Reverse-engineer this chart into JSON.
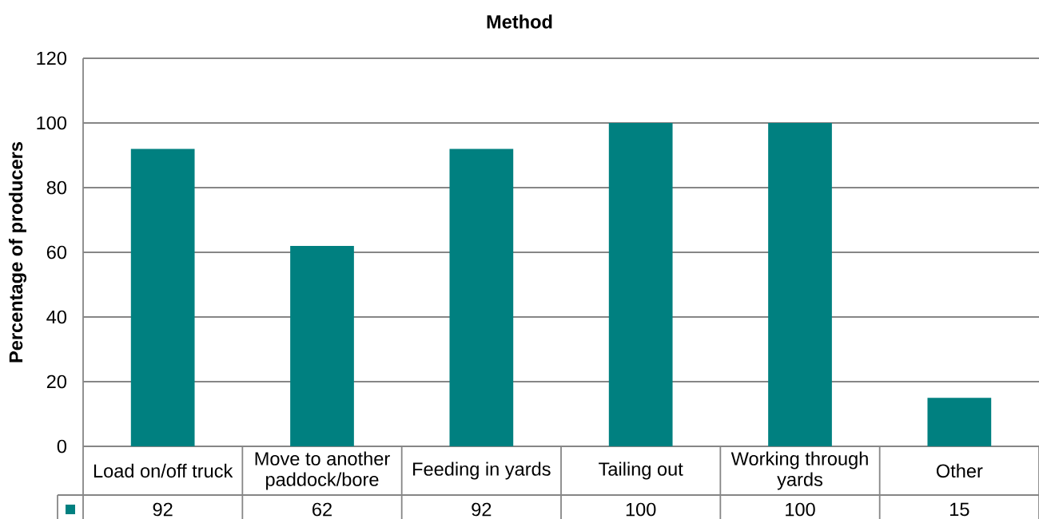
{
  "chart_data": {
    "type": "bar",
    "title": "Method",
    "ylabel": "Percentage of producers",
    "categories": [
      "Load on/off truck",
      "Move to another paddock/bore",
      "Feeding in yards",
      "Tailing out",
      "Working through yards",
      "Other"
    ],
    "values": [
      92,
      62,
      92,
      100,
      100,
      15
    ],
    "color": "#008080",
    "ylim": [
      0,
      120
    ],
    "yticks": [
      0,
      20,
      40,
      60,
      80,
      100,
      120
    ],
    "grid": "y",
    "data_labels": true
  }
}
